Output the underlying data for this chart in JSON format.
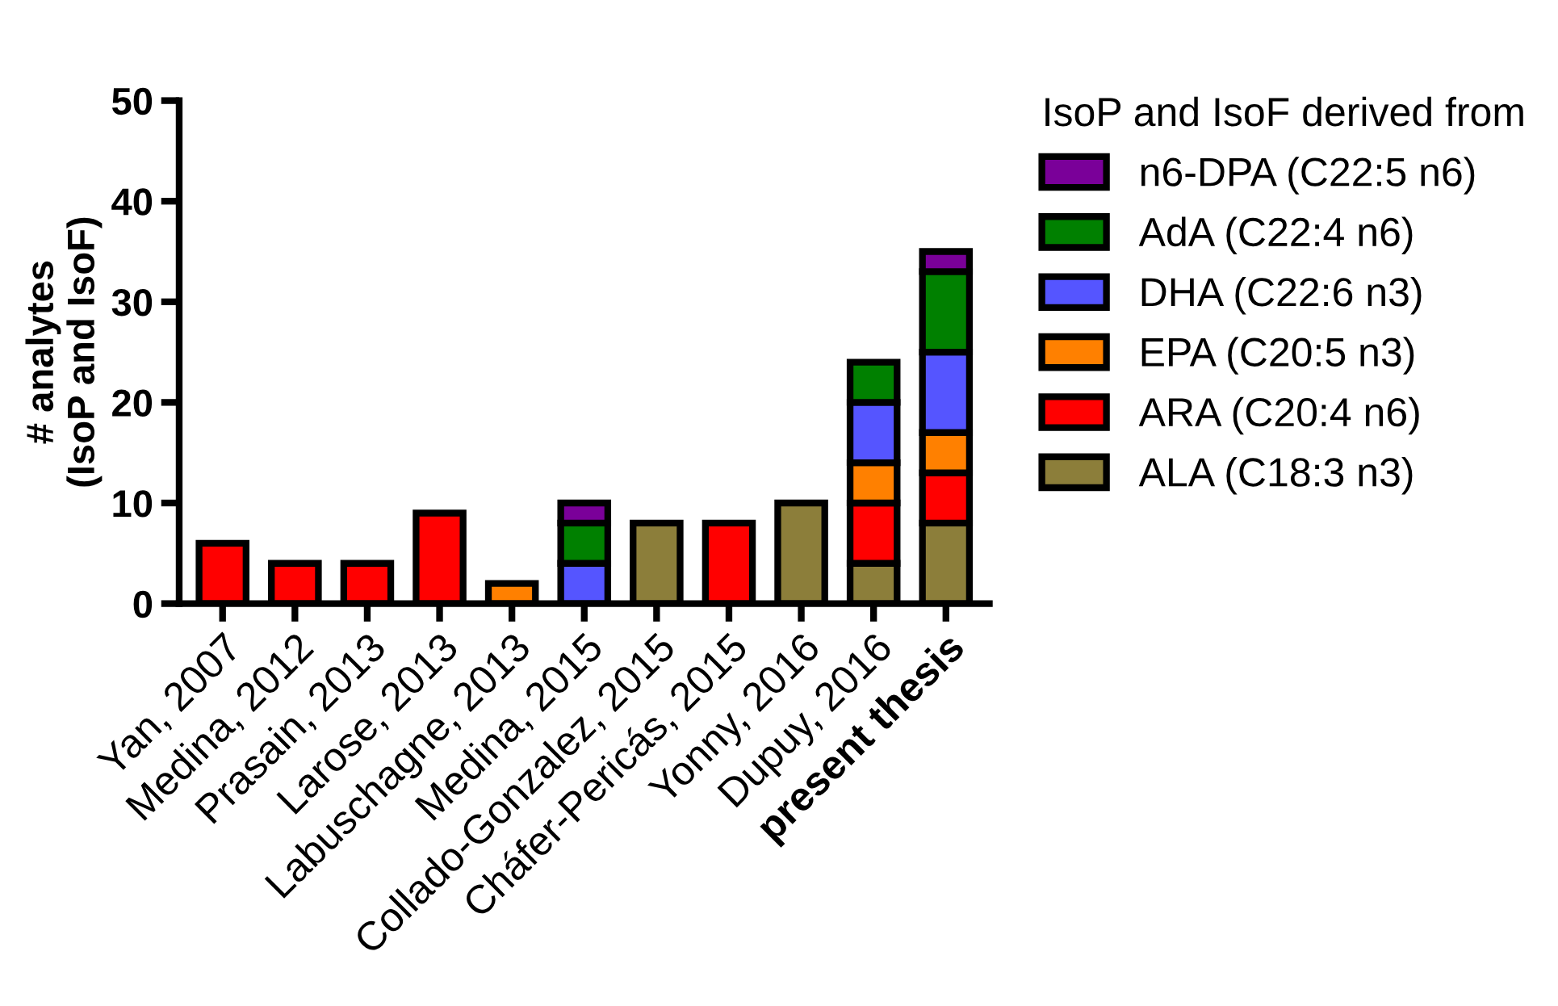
{
  "chart_data": {
    "type": "bar",
    "stacked": true,
    "ylabel": "# analytes\n(IsoP and IsoF)",
    "legend_title": "IsoP and IsoF derived from",
    "legend": "right",
    "grid": false,
    "categories": [
      "Yan, 2007",
      "Medina, 2012",
      "Prasain, 2013",
      "Larose, 2013",
      "Labuschagne, 2013",
      "Medina, 2015",
      "Collado-Gonzalez, 2015",
      "Cháfer-Pericás, 2015",
      "Yonny, 2016",
      "Dupuy, 2016",
      "present thesis"
    ],
    "ylim": [
      0,
      50
    ],
    "yticks": [
      0,
      10,
      20,
      30,
      40,
      50
    ],
    "series": [
      {
        "name": "ALA (C18:3 n3)",
        "color": "#8c7e3a",
        "values": [
          0,
          0,
          0,
          0,
          0,
          0,
          8,
          0,
          10,
          4,
          8
        ]
      },
      {
        "name": "ARA (C20:4 n6)",
        "color": "#ff0000",
        "values": [
          6,
          4,
          4,
          9,
          0,
          0,
          0,
          8,
          0,
          6,
          5
        ]
      },
      {
        "name": "EPA (C20:5 n3)",
        "color": "#ff8000",
        "values": [
          0,
          0,
          0,
          0,
          2,
          0,
          0,
          0,
          0,
          4,
          4
        ]
      },
      {
        "name": "DHA (C22:6 n3)",
        "color": "#5555ff",
        "values": [
          0,
          0,
          0,
          0,
          0,
          4,
          0,
          0,
          0,
          6,
          8
        ]
      },
      {
        "name": "AdA (C22:4 n6)",
        "color": "#008000",
        "values": [
          0,
          0,
          0,
          0,
          0,
          4,
          0,
          0,
          0,
          4,
          8
        ]
      },
      {
        "name": "n6-DPA (C22:5 n6)",
        "color": "#7a0099",
        "values": [
          0,
          0,
          0,
          0,
          0,
          2,
          0,
          0,
          0,
          0,
          2
        ]
      }
    ]
  }
}
